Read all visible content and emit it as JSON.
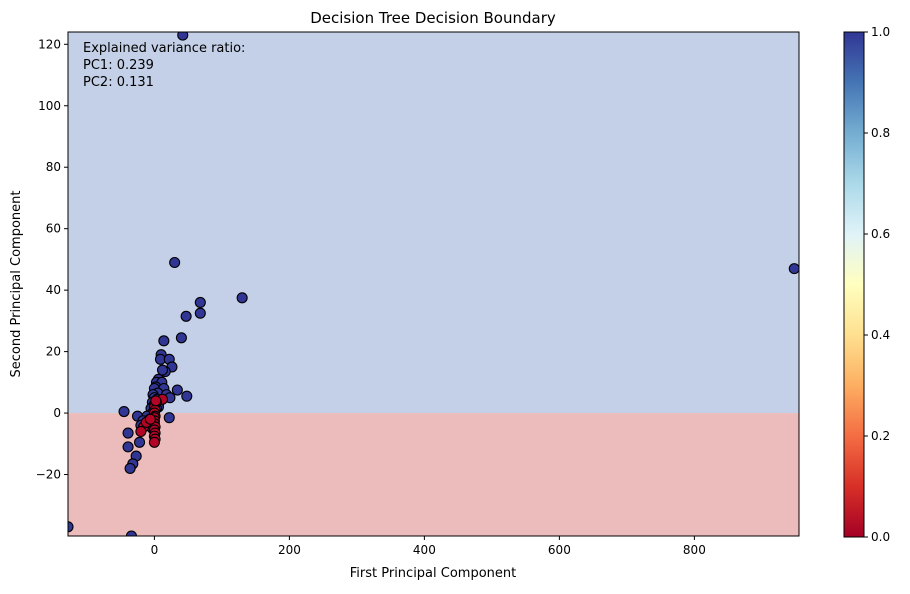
{
  "chart_data": {
    "type": "scatter",
    "title": "Decision Tree Decision Boundary",
    "xlabel": "First Principal Component",
    "ylabel": "Second Principal Component",
    "xlim": [
      -128,
      955
    ],
    "ylim": [
      -40,
      124
    ],
    "xticks": [
      0,
      200,
      400,
      600,
      800
    ],
    "xtick_labels": [
      "0",
      "200",
      "400",
      "600",
      "800"
    ],
    "yticks": [
      -20,
      0,
      20,
      40,
      60,
      80,
      100,
      120
    ],
    "ytick_labels": [
      "−20",
      "0",
      "20",
      "40",
      "60",
      "80",
      "100",
      "120"
    ],
    "grid": false,
    "decision_boundary": {
      "threshold_y": 0,
      "above_class": 1,
      "below_class": 0,
      "above_color": "#c4d0e7",
      "below_color": "#ecbcbc"
    },
    "annotation": {
      "lines": [
        "Explained variance ratio:",
        "PC1: 0.239",
        "PC2: 0.131"
      ],
      "position": "top-left"
    },
    "colorbar": {
      "colormap": "RdYlBu",
      "min": 0.0,
      "max": 1.0,
      "ticks": [
        0.0,
        0.2,
        0.4,
        0.6,
        0.8,
        1.0
      ],
      "tick_labels": [
        "0.0",
        "0.2",
        "0.4",
        "0.6",
        "0.8",
        "1.0"
      ],
      "stops": [
        "#a50026",
        "#d73027",
        "#f46d43",
        "#fdae61",
        "#fee090",
        "#ffffbf",
        "#e0f3f8",
        "#abd9e9",
        "#74add1",
        "#4575b4",
        "#313695"
      ]
    },
    "class_colors": {
      "0": "#b40426",
      "1": "#313695"
    },
    "series": [
      {
        "class": 1,
        "points": [
          [
            42,
            123
          ],
          [
            30,
            49
          ],
          [
            948,
            47
          ],
          [
            130,
            37.5
          ],
          [
            68,
            36
          ],
          [
            68,
            32.5
          ],
          [
            47,
            31.5
          ],
          [
            40,
            24.5
          ],
          [
            14,
            23.5
          ],
          [
            10,
            19
          ],
          [
            9,
            17.5
          ],
          [
            22,
            17.5
          ],
          [
            26,
            15
          ],
          [
            16,
            13.5
          ],
          [
            12,
            14
          ],
          [
            6,
            11
          ],
          [
            3,
            10
          ],
          [
            11,
            10
          ],
          [
            2,
            8.5
          ],
          [
            0,
            8
          ],
          [
            14,
            8
          ],
          [
            34,
            7.5
          ],
          [
            5,
            6.5
          ],
          [
            -2,
            6
          ],
          [
            18,
            6
          ],
          [
            48,
            5.5
          ],
          [
            23,
            5
          ],
          [
            0,
            5
          ],
          [
            4,
            4.5
          ],
          [
            -3,
            3.5
          ],
          [
            7,
            3.5
          ],
          [
            -1,
            2.5
          ],
          [
            6,
            2
          ],
          [
            -5,
            1.5
          ],
          [
            3,
            1.5
          ],
          [
            -45,
            0.5
          ],
          [
            -3,
            0
          ],
          [
            -25,
            -1
          ],
          [
            -11,
            -1
          ],
          [
            22,
            -1.5
          ],
          [
            -7,
            -2
          ],
          [
            -17,
            -2.5
          ],
          [
            -20,
            -4
          ],
          [
            -3,
            -5
          ],
          [
            -39,
            -6.5
          ],
          [
            -22,
            -9.5
          ],
          [
            -39,
            -11
          ],
          [
            -27,
            -14
          ],
          [
            -32,
            -16.5
          ],
          [
            -36,
            -18
          ],
          [
            -128,
            -37
          ],
          [
            -34,
            -40
          ]
        ]
      },
      {
        "class": 0,
        "points": [
          [
            12,
            4.5
          ],
          [
            3,
            3.5
          ],
          [
            0,
            2
          ],
          [
            1,
            1
          ],
          [
            0,
            0
          ],
          [
            1,
            -1
          ],
          [
            0,
            -1.5
          ],
          [
            0,
            -2.5
          ],
          [
            0,
            -3.5
          ],
          [
            1,
            -4.5
          ],
          [
            0,
            -5.5
          ],
          [
            1,
            -6.5
          ],
          [
            0,
            -7.5
          ],
          [
            1,
            -8.5
          ],
          [
            0,
            -9.5
          ],
          [
            -16,
            -4.5
          ],
          [
            -20,
            -6
          ],
          [
            -12,
            -3
          ],
          [
            -6,
            -2
          ],
          [
            2,
            4
          ]
        ]
      }
    ]
  }
}
